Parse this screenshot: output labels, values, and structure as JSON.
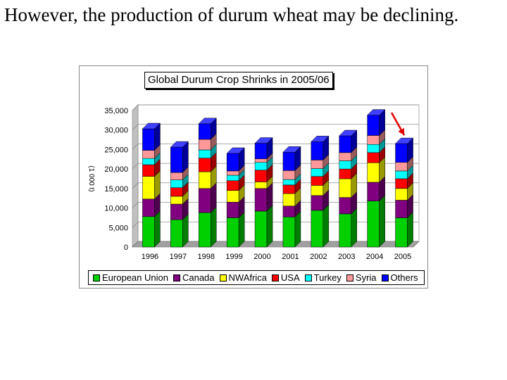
{
  "slide": {
    "heading": "However, the production of durum wheat may be declining."
  },
  "chart_data": {
    "type": "bar",
    "stacked": true,
    "style": "3d",
    "title": "Global Durum Crop Shrinks in 2005/06",
    "ylabel": "(1 000 t)",
    "xlabel": "",
    "ylim": [
      0,
      35000
    ],
    "yticks": [
      0,
      5000,
      10000,
      15000,
      20000,
      25000,
      30000,
      35000
    ],
    "ytick_labels": [
      "0",
      "5,000",
      "10,000",
      "15,000",
      "20,000",
      "25,000",
      "30,000",
      "35,000"
    ],
    "grid": true,
    "legend_position": "bottom",
    "categories": [
      "1996",
      "1997",
      "1998",
      "1999",
      "2000",
      "2001",
      "2002",
      "2003",
      "2004",
      "2005"
    ],
    "series": [
      {
        "name": "European Union",
        "color": "#00d000",
        "values": [
          7800,
          7000,
          8800,
          7500,
          9200,
          7700,
          9400,
          8500,
          11800,
          7500
        ]
      },
      {
        "name": "Canada",
        "color": "#800080",
        "values": [
          4500,
          4000,
          6200,
          4000,
          5800,
          2800,
          3800,
          4200,
          4800,
          4500
        ]
      },
      {
        "name": "NWAfrica",
        "color": "#ffff00",
        "values": [
          5800,
          2000,
          4300,
          3000,
          1700,
          3200,
          2600,
          4800,
          5000,
          3000
        ]
      },
      {
        "name": "USA",
        "color": "#ff0000",
        "values": [
          3000,
          2200,
          3500,
          2500,
          3000,
          2200,
          2300,
          2500,
          2600,
          2500
        ]
      },
      {
        "name": "Turkey",
        "color": "#00ffff",
        "values": [
          1600,
          2000,
          2100,
          1400,
          2000,
          1400,
          2000,
          2100,
          2100,
          2000
        ]
      },
      {
        "name": "Syria",
        "color": "#ff9999",
        "values": [
          2100,
          1900,
          2700,
          1100,
          900,
          2300,
          2200,
          2100,
          2300,
          2200
        ]
      },
      {
        "name": "Others",
        "color": "#0000ff",
        "values": [
          5500,
          6500,
          4000,
          4500,
          4000,
          4700,
          4700,
          4300,
          5200,
          4800
        ]
      }
    ],
    "annotations": [
      {
        "type": "arrow",
        "color": "#e00000",
        "target": "2005"
      }
    ]
  }
}
